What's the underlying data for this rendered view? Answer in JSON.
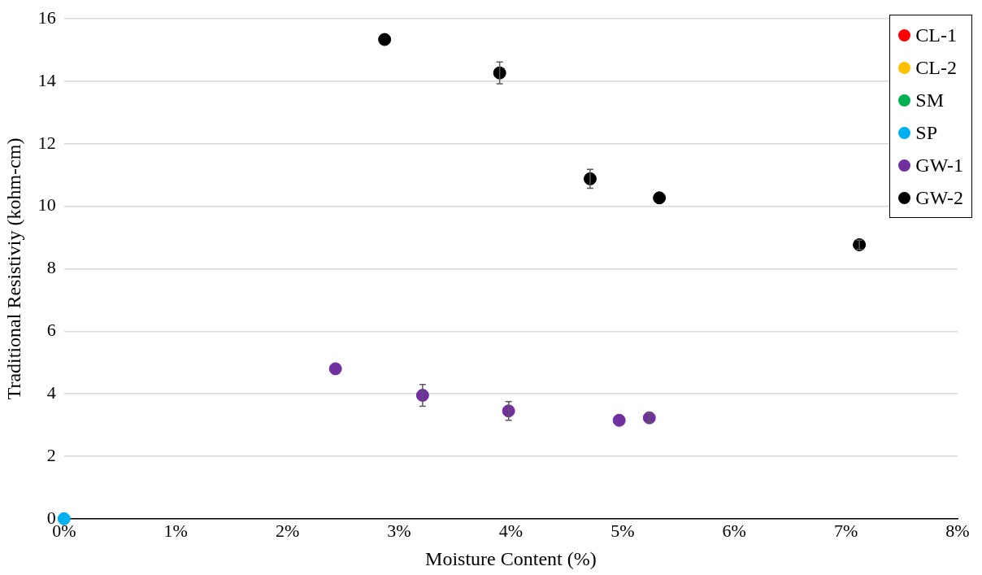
{
  "chart_data": {
    "type": "scatter",
    "xlabel": "Moisture Content (%)",
    "ylabel": "Traditional Resistiviy (kohm-cm)",
    "xlim": [
      0,
      8
    ],
    "xticks": [
      {
        "value": 0,
        "label": "0%"
      },
      {
        "value": 1,
        "label": "1%"
      },
      {
        "value": 2,
        "label": "2%"
      },
      {
        "value": 3,
        "label": "3%"
      },
      {
        "value": 4,
        "label": "4%"
      },
      {
        "value": 5,
        "label": "5%"
      },
      {
        "value": 6,
        "label": "6%"
      },
      {
        "value": 7,
        "label": "7%"
      },
      {
        "value": 8,
        "label": "8%"
      }
    ],
    "ylim": [
      0,
      16
    ],
    "yticks": [
      0,
      2,
      4,
      6,
      8,
      10,
      12,
      14,
      16
    ],
    "grid": "y",
    "legend": "top right",
    "marker": "circle",
    "series": [
      {
        "name": "CL-1",
        "color": "#ff0000"
      },
      {
        "name": "CL-2",
        "color": "#ffc000"
      },
      {
        "name": "SM",
        "color": "#00b050"
      },
      {
        "name": "SP",
        "color": "#00b0f0",
        "x": [
          0
        ],
        "values": [
          0
        ]
      },
      {
        "name": "GW-1",
        "color": "#7030a0",
        "x": [
          2.43,
          3.21,
          3.98,
          4.97,
          5.24
        ],
        "values": [
          4.8,
          3.95,
          3.45,
          3.15,
          3.23
        ],
        "errors": [
          null,
          0.35,
          0.3,
          null,
          0.15
        ]
      },
      {
        "name": "GW-2",
        "color": "#000000",
        "x": [
          2.87,
          3.9,
          4.71,
          5.33,
          7.12
        ],
        "values": [
          15.34,
          14.27,
          10.88,
          10.27,
          8.77
        ],
        "errors": [
          null,
          0.35,
          0.3,
          null,
          0.15
        ]
      }
    ]
  }
}
